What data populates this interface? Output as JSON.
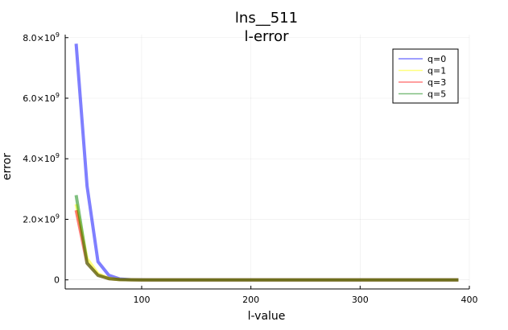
{
  "chart_data": {
    "type": "line",
    "title": "lns__511",
    "subtitle": "l-error",
    "xlabel": "l-value",
    "ylabel": "error",
    "xlim": [
      30,
      400
    ],
    "ylim": [
      -300000000,
      8100000000
    ],
    "x_ticks": [
      100,
      200,
      300,
      400
    ],
    "x_tick_labels": [
      "100",
      "200",
      "300",
      "400"
    ],
    "y_ticks": [
      0,
      2000000000,
      4000000000,
      6000000000,
      8000000000
    ],
    "y_tick_labels": [
      {
        "mantissa": "0",
        "exp": ""
      },
      {
        "mantissa": "2.0×10",
        "exp": "9"
      },
      {
        "mantissa": "4.0×10",
        "exp": "9"
      },
      {
        "mantissa": "6.0×10",
        "exp": "9"
      },
      {
        "mantissa": "8.0×10",
        "exp": "9"
      }
    ],
    "grid": true,
    "legend_position": "top-right",
    "x": [
      40,
      50,
      60,
      70,
      80,
      90,
      100,
      110,
      120,
      130,
      140,
      150,
      160,
      170,
      180,
      190,
      200,
      210,
      220,
      230,
      240,
      250,
      260,
      270,
      280,
      290,
      300,
      310,
      320,
      330,
      340,
      350,
      360,
      370,
      380,
      390
    ],
    "series": [
      {
        "name": "q=0",
        "color": "#0000ff",
        "values": [
          7800000000,
          3100000000,
          600000000,
          150000000,
          30000000,
          5000000,
          1000000,
          0,
          0,
          0,
          0,
          0,
          0,
          0,
          0,
          0,
          0,
          0,
          0,
          0,
          0,
          0,
          0,
          0,
          0,
          0,
          0,
          0,
          0,
          0,
          0,
          0,
          0,
          0,
          0,
          0
        ]
      },
      {
        "name": "q=1",
        "color": "#ffff00",
        "values": [
          2500000000,
          700000000,
          200000000,
          50000000,
          10000000,
          2000000,
          0,
          0,
          0,
          0,
          0,
          0,
          0,
          0,
          0,
          0,
          0,
          0,
          0,
          0,
          0,
          0,
          0,
          0,
          0,
          0,
          0,
          0,
          0,
          0,
          0,
          0,
          0,
          0,
          0,
          0
        ]
      },
      {
        "name": "q=3",
        "color": "#ff0000",
        "values": [
          2300000000,
          550000000,
          150000000,
          40000000,
          8000000,
          1000000,
          0,
          0,
          0,
          0,
          0,
          0,
          0,
          0,
          0,
          0,
          0,
          0,
          0,
          0,
          0,
          0,
          0,
          0,
          0,
          0,
          0,
          0,
          0,
          0,
          0,
          0,
          0,
          0,
          0,
          0
        ]
      },
      {
        "name": "q=5",
        "color": "#008000",
        "values": [
          2800000000,
          550000000,
          150000000,
          40000000,
          8000000,
          1000000,
          0,
          0,
          0,
          0,
          0,
          0,
          0,
          0,
          0,
          0,
          0,
          0,
          0,
          0,
          0,
          0,
          0,
          0,
          0,
          0,
          0,
          0,
          0,
          0,
          0,
          0,
          0,
          0,
          0,
          0
        ]
      }
    ]
  }
}
